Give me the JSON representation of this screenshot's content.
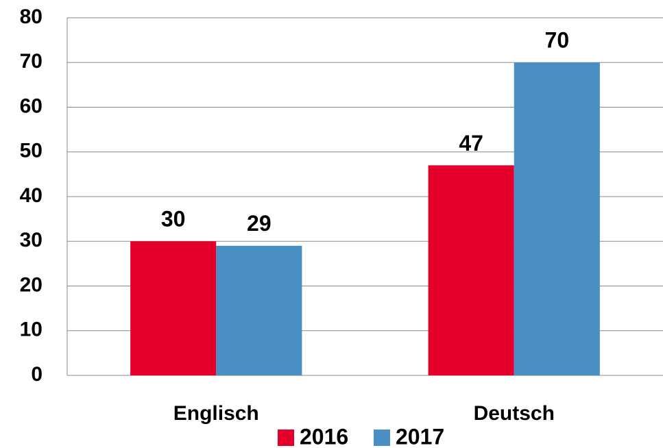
{
  "chart_data": {
    "type": "bar",
    "categories": [
      "Englisch",
      "Deutsch"
    ],
    "series": [
      {
        "name": "2016",
        "color": "#e4002b",
        "values": [
          30,
          47
        ]
      },
      {
        "name": "2017",
        "color": "#4a8fc4",
        "values": [
          29,
          70
        ]
      }
    ],
    "ylim": [
      0,
      80
    ],
    "yticks": [
      0,
      10,
      20,
      30,
      40,
      50,
      60,
      70,
      80
    ],
    "grid": true,
    "legend": "bottom"
  }
}
